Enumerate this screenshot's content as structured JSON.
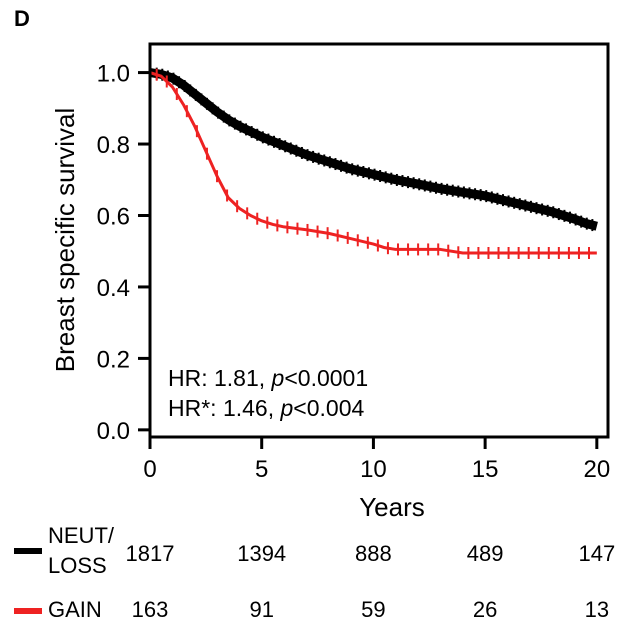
{
  "panel_label": "D",
  "colors": {
    "neut_loss": "#000000",
    "gain": "#ee2222"
  },
  "chart_data": {
    "type": "line",
    "subtype": "kaplan-meier",
    "xlabel": "Years",
    "ylabel": "Breast specific survival",
    "xlim": [
      0,
      20.5
    ],
    "ylim": [
      -0.02,
      1.08
    ],
    "xticks": [
      0,
      5,
      10,
      15,
      20
    ],
    "yticks": [
      0.0,
      0.2,
      0.4,
      0.6,
      0.8,
      1.0
    ],
    "xtick_labels": [
      "0",
      "5",
      "10",
      "15",
      "20"
    ],
    "ytick_labels": [
      "0.0",
      "0.2",
      "0.4",
      "0.6",
      "0.8",
      "1.0"
    ],
    "grid": false,
    "annotations": [
      {
        "prefix": "HR:  1.81, ",
        "p": "p",
        "suffix": "<0.0001"
      },
      {
        "prefix": "HR*: 1.46, ",
        "p": "p",
        "suffix": "<0.004"
      }
    ],
    "series": [
      {
        "name": "NEUT/LOSS",
        "color": "#000000",
        "x": [
          0,
          0.5,
          1,
          1.5,
          2,
          2.5,
          3,
          3.5,
          4,
          4.5,
          5,
          6,
          7,
          8,
          9,
          10,
          11,
          12,
          13,
          14,
          15,
          16,
          17,
          18,
          19,
          19.5,
          20
        ],
        "y": [
          1.0,
          0.995,
          0.985,
          0.965,
          0.94,
          0.915,
          0.89,
          0.868,
          0.85,
          0.835,
          0.82,
          0.795,
          0.77,
          0.75,
          0.73,
          0.715,
          0.7,
          0.688,
          0.675,
          0.665,
          0.655,
          0.64,
          0.625,
          0.61,
          0.59,
          0.578,
          0.57
        ]
      },
      {
        "name": "GAIN",
        "color": "#ee2222",
        "x": [
          0,
          0.5,
          1,
          1.5,
          2,
          2.5,
          3,
          3.5,
          4,
          4.5,
          5,
          5.5,
          6,
          7,
          8,
          9,
          10,
          10.5,
          11,
          12,
          13,
          14,
          15,
          16,
          17,
          18,
          19,
          20
        ],
        "y": [
          1.0,
          0.99,
          0.96,
          0.91,
          0.85,
          0.78,
          0.71,
          0.65,
          0.62,
          0.6,
          0.585,
          0.575,
          0.568,
          0.56,
          0.55,
          0.535,
          0.52,
          0.51,
          0.505,
          0.505,
          0.505,
          0.495,
          0.495,
          0.495,
          0.495,
          0.495,
          0.495,
          0.495
        ]
      }
    ]
  },
  "risk_table": {
    "groups": [
      {
        "label_line1": "NEUT/",
        "label_line2": "LOSS",
        "counts": [
          "1817",
          "1394",
          "888",
          "489",
          "147"
        ]
      },
      {
        "label_line1": "GAIN",
        "label_line2": "",
        "counts": [
          "163",
          "91",
          "59",
          "26",
          "13"
        ]
      }
    ]
  }
}
